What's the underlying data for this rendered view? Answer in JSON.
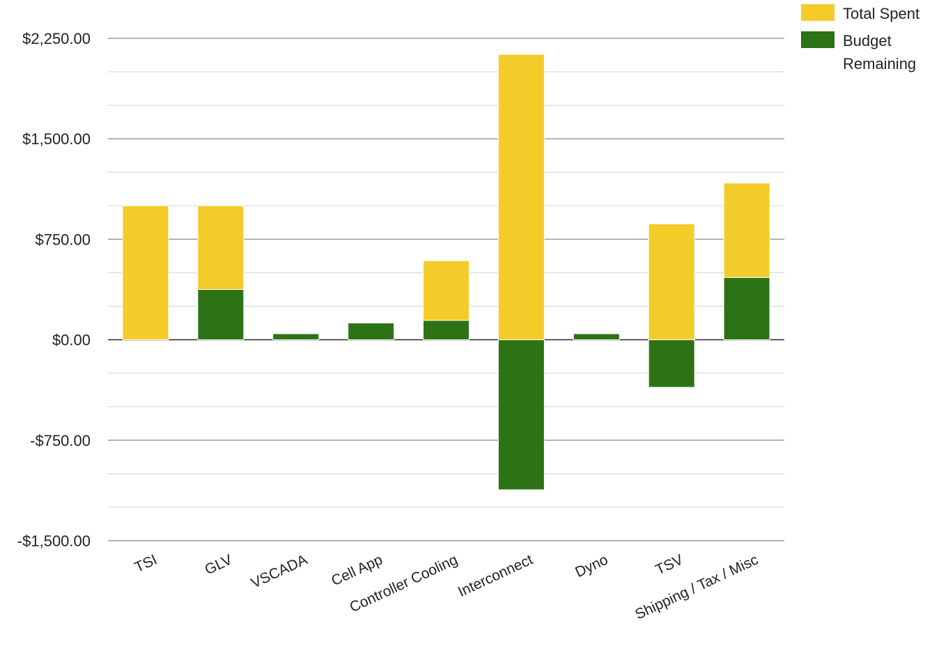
{
  "chart_data": {
    "type": "bar",
    "stacked": true,
    "title": "",
    "xlabel": "",
    "ylabel": "",
    "ylim": [
      -1500,
      2250
    ],
    "yticks": [
      {
        "value": 2250,
        "label": "$2,250.00"
      },
      {
        "value": 1500,
        "label": "$1,500.00"
      },
      {
        "value": 750,
        "label": "$750.00"
      },
      {
        "value": 0,
        "label": "$0.00"
      },
      {
        "value": -750,
        "label": "-$750.00"
      },
      {
        "value": -1500,
        "label": "-$1,500.00"
      }
    ],
    "minor_gridline_step": 250,
    "grid": true,
    "categories": [
      "TSI",
      "GLV",
      "VSCADA",
      "Cell App",
      "Controller Cooling",
      "Interconnect",
      "Dyno",
      "TSV",
      "Shipping / Tax / Misc"
    ],
    "series": [
      {
        "name": "Total Spent",
        "color": "#F4CC2A",
        "values": [
          1000,
          625,
          0,
          0,
          445,
          2130,
          0,
          865,
          705
        ]
      },
      {
        "name": "Budget Remaining",
        "color": "#2D7316",
        "values": [
          0,
          375,
          45,
          125,
          145,
          -1120,
          45,
          -355,
          465
        ]
      }
    ],
    "legend": {
      "position": "top-right",
      "items": [
        {
          "label": "Total Spent",
          "color": "#F4CC2A"
        },
        {
          "label": "Budget",
          "label2": "Remaining",
          "color": "#2D7316"
        }
      ]
    }
  }
}
